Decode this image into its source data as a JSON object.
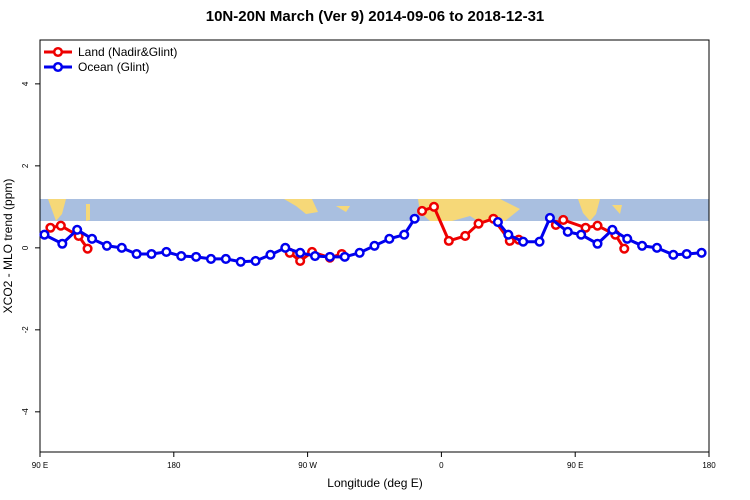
{
  "chart_data": {
    "type": "line",
    "title": "10N-20N March (Ver 9)   2014-09-06 to 2018-12-31",
    "x_label": "Longitude (deg E)",
    "y_label": "XCO2 - MLO trend (ppm)",
    "xlim": [
      90,
      540
    ],
    "ylim": [
      -4.98,
      5.07
    ],
    "xticks": [
      {
        "value": 90,
        "label": "90 E"
      },
      180,
      {
        "value": 270,
        "label": "90 W"
      },
      {
        "value": 360,
        "label": "0"
      },
      {
        "value": 450,
        "label": "90 E"
      },
      {
        "value": 540,
        "label": "180"
      }
    ],
    "yticks": [
      -4,
      -2,
      0,
      2,
      4
    ],
    "legend": "top-left",
    "series": [
      {
        "name": "Land (Nadir&Glint)",
        "color": "#ee0000",
        "x": [
          97,
          104,
          116,
          122,
          200,
          258,
          265,
          273,
          285,
          293,
          380,
          347,
          355,
          365,
          376,
          385,
          395,
          406,
          412,
          420,
          437,
          442,
          457,
          465,
          477,
          483
        ],
        "values": [
          0.49,
          0.54,
          0.29,
          -0.02,
          null,
          -0.12,
          -0.32,
          -0.1,
          -0.24,
          -0.15,
          null,
          0.9,
          1.0,
          0.17,
          0.29,
          0.59,
          0.71,
          0.17,
          0.2,
          null,
          0.56,
          0.68,
          0.49,
          0.54,
          0.32,
          -0.02
        ]
      },
      {
        "name": "Ocean (Glint)",
        "color": "#0000ee",
        "x": [
          93,
          105,
          115,
          125,
          135,
          145,
          155,
          165,
          175,
          185,
          195,
          205,
          215,
          225,
          235,
          245,
          255,
          265,
          275,
          285,
          295,
          305,
          315,
          325,
          335,
          342,
          370,
          398,
          405,
          415,
          426,
          433,
          445,
          454,
          465,
          475,
          485,
          495,
          505,
          516,
          525,
          535
        ],
        "values": [
          0.32,
          0.1,
          0.44,
          0.22,
          0.05,
          0.0,
          -0.15,
          -0.15,
          -0.1,
          -0.2,
          -0.22,
          -0.27,
          -0.27,
          -0.34,
          -0.32,
          -0.17,
          0.0,
          -0.12,
          -0.2,
          -0.22,
          -0.22,
          -0.12,
          0.05,
          0.22,
          0.32,
          0.71,
          null,
          0.63,
          0.32,
          0.15,
          0.15,
          0.73,
          0.39,
          0.32,
          0.1,
          0.44,
          0.22,
          0.05,
          0.0,
          -0.17,
          -0.15,
          -0.12
        ]
      }
    ]
  }
}
